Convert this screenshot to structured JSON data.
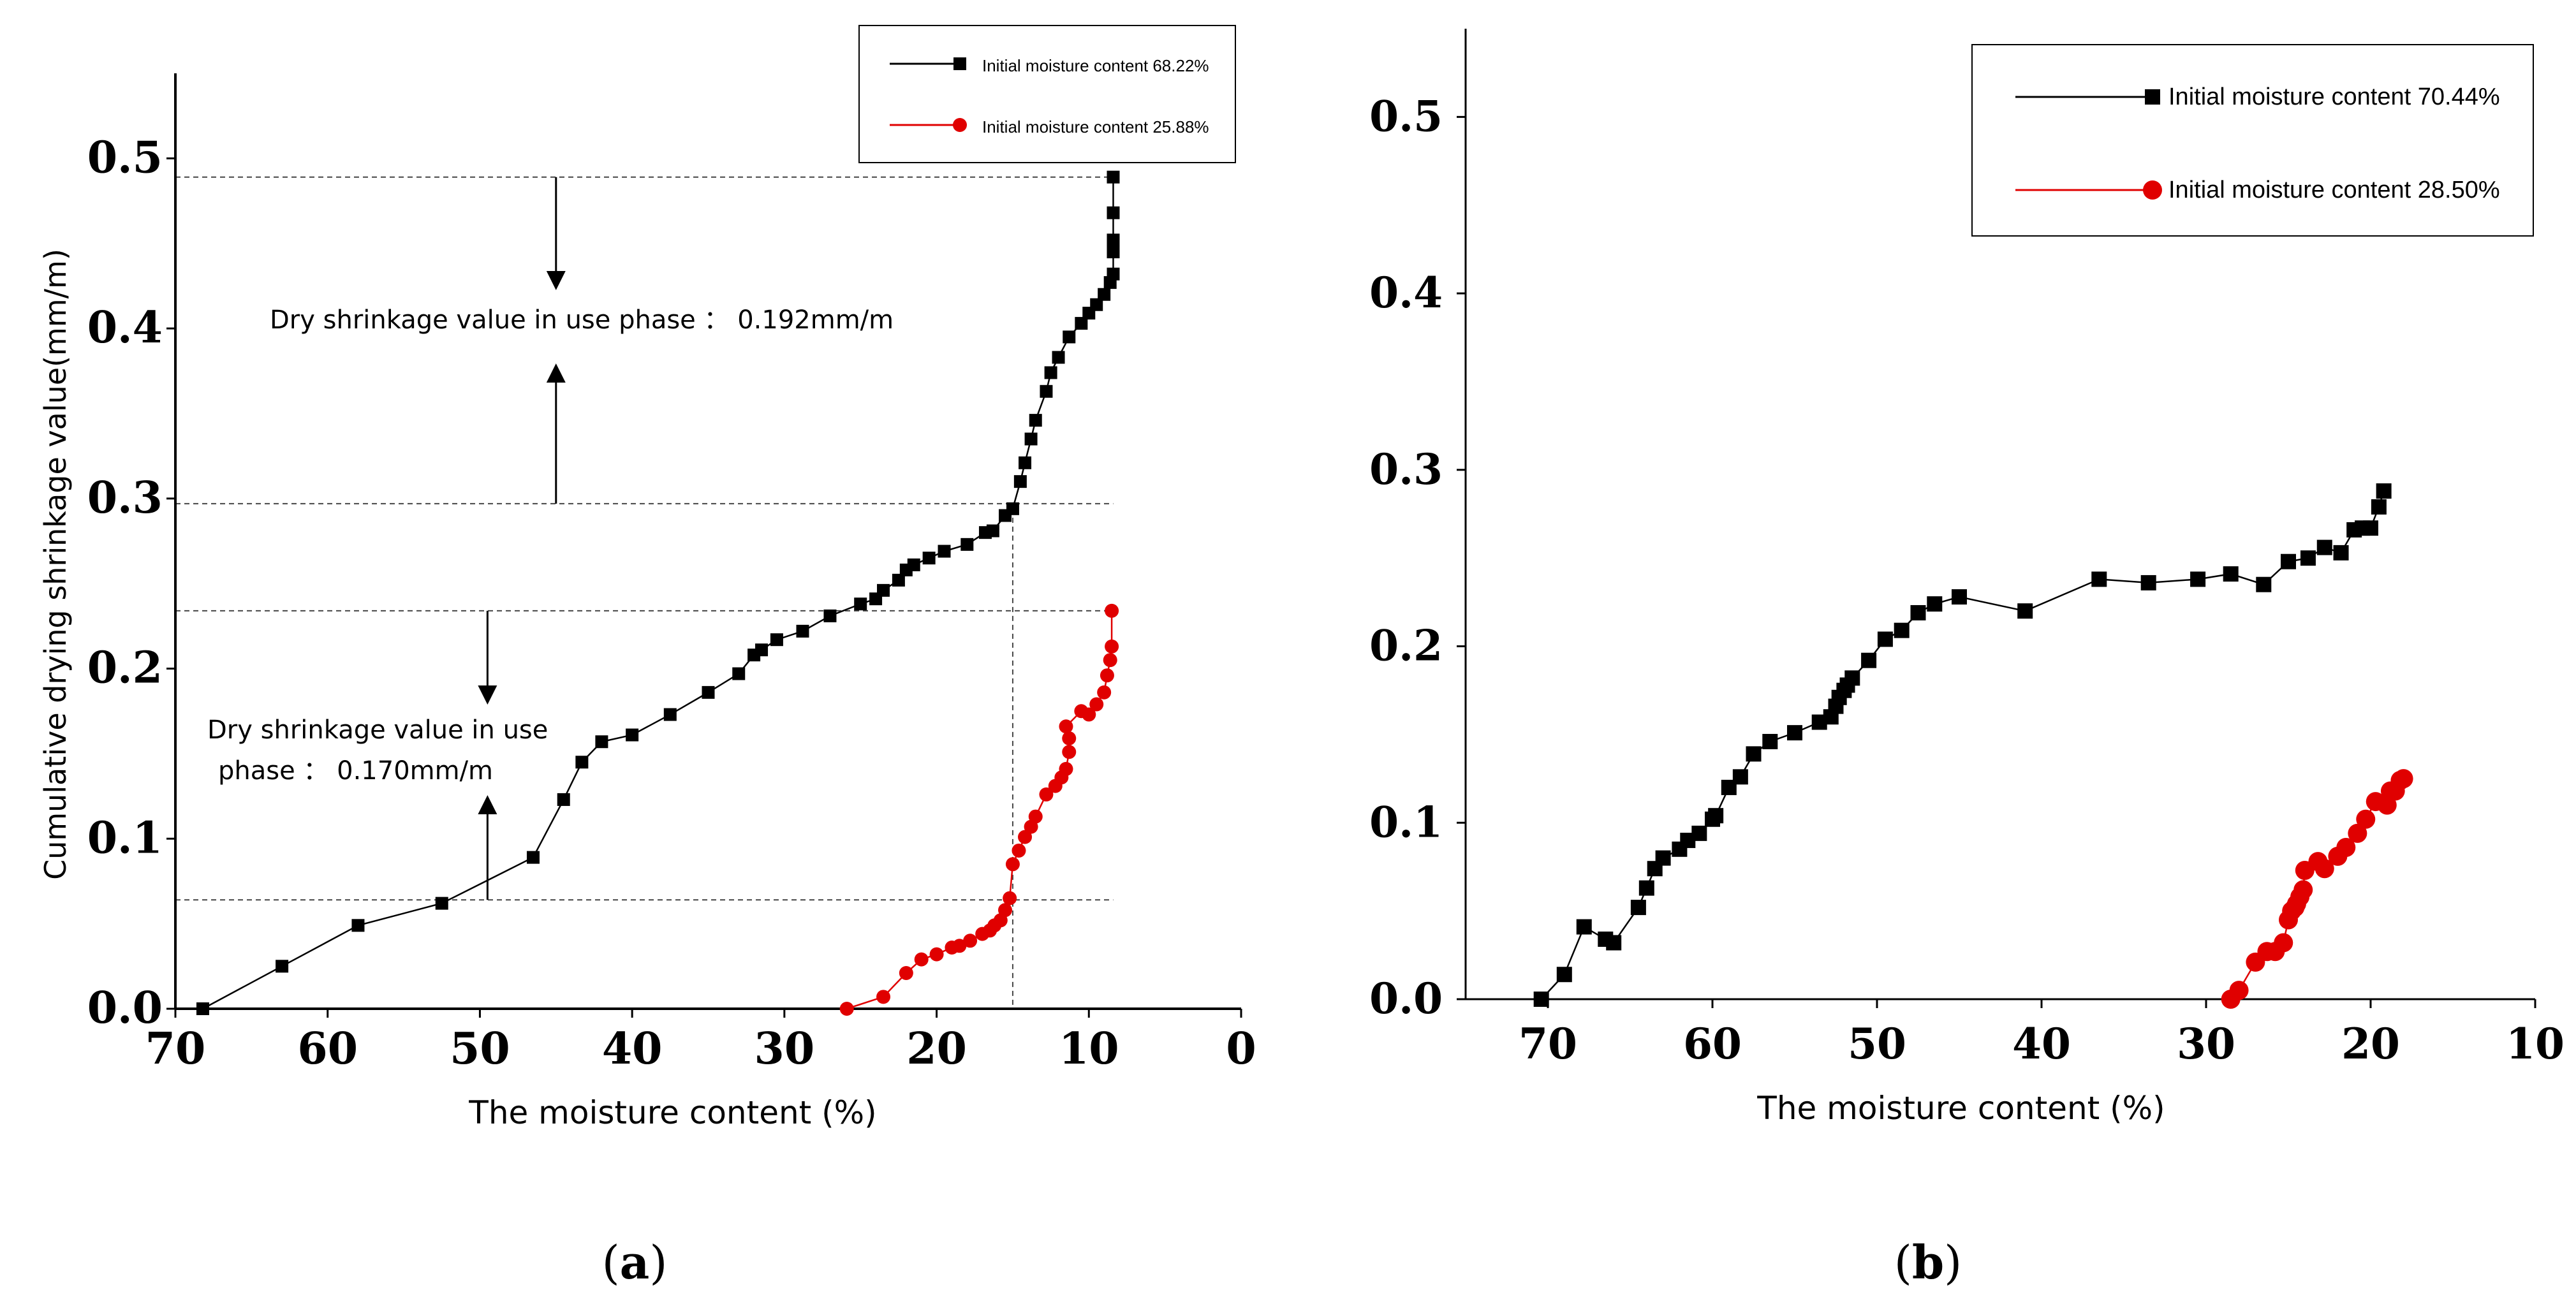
{
  "chart_data": [
    {
      "type": "line",
      "panel_label": "a",
      "title": "",
      "xlabel": "The moisture content (%)",
      "ylabel": "Cumulative drying shrinkage value(mm/m)",
      "xlim": [
        70,
        0
      ],
      "ylim": [
        0,
        0.55
      ],
      "xticks": [
        70,
        60,
        50,
        40,
        30,
        20,
        10,
        0
      ],
      "yticks": [
        0.0,
        0.1,
        0.2,
        0.3,
        0.4,
        0.5
      ],
      "xtick_labels": [
        "70",
        "60",
        "50",
        "40",
        "30",
        "20",
        "10",
        "0"
      ],
      "ytick_labels": [
        "0.0",
        "0.1",
        "0.2",
        "0.3",
        "0.4",
        "0.5"
      ],
      "legend_position": "top-right",
      "series": [
        {
          "name": "Initial moisture content 68.22%",
          "color": "#000000",
          "marker": "square",
          "x": [
            68.2,
            63.0,
            58.0,
            52.5,
            46.5,
            44.5,
            43.3,
            42.0,
            40.0,
            37.5,
            35.0,
            33.0,
            32.0,
            31.5,
            30.5,
            28.8,
            27.0,
            25.0,
            24.0,
            23.5,
            22.5,
            22.0,
            21.5,
            20.5,
            19.5,
            18.0,
            16.8,
            16.3,
            15.5,
            15.0,
            14.5,
            14.2,
            13.8,
            13.5,
            12.8,
            12.5,
            12.0,
            11.3,
            10.5,
            10.0,
            9.5,
            9.0,
            8.6,
            8.4,
            8.4,
            8.4,
            8.4,
            8.4
          ],
          "y": [
            0.0,
            0.025,
            0.049,
            0.062,
            0.089,
            0.123,
            0.145,
            0.157,
            0.161,
            0.173,
            0.186,
            0.197,
            0.208,
            0.211,
            0.217,
            0.222,
            0.231,
            0.238,
            0.241,
            0.246,
            0.252,
            0.258,
            0.261,
            0.265,
            0.269,
            0.273,
            0.28,
            0.281,
            0.29,
            0.294,
            0.31,
            0.321,
            0.335,
            0.346,
            0.363,
            0.374,
            0.383,
            0.395,
            0.403,
            0.409,
            0.414,
            0.42,
            0.427,
            0.432,
            0.445,
            0.452,
            0.468,
            0.489
          ]
        },
        {
          "name": "Initial moisture content 25.88%",
          "color": "#e00000",
          "marker": "circle",
          "x": [
            25.9,
            23.5,
            22.0,
            21.0,
            20.0,
            19.0,
            18.5,
            17.8,
            17.0,
            16.5,
            16.2,
            15.8,
            15.5,
            15.2,
            15.0,
            14.6,
            14.2,
            13.8,
            13.5,
            12.8,
            12.2,
            11.8,
            11.5,
            11.3,
            11.3,
            11.5,
            10.5,
            10.0,
            9.5,
            9.0,
            8.8,
            8.6,
            8.5,
            8.5
          ],
          "y": [
            0.0,
            0.007,
            0.021,
            0.029,
            0.032,
            0.036,
            0.037,
            0.04,
            0.044,
            0.046,
            0.049,
            0.052,
            0.058,
            0.065,
            0.085,
            0.093,
            0.101,
            0.107,
            0.113,
            0.126,
            0.131,
            0.136,
            0.141,
            0.151,
            0.159,
            0.166,
            0.175,
            0.173,
            0.179,
            0.186,
            0.196,
            0.205,
            0.213,
            0.234
          ]
        }
      ],
      "annotations": [
        {
          "text": "Dry shrinkage value in use phase ： 0.192mm/m",
          "top": 0.489,
          "bottom": 0.297,
          "x": 45
        },
        {
          "text_lines": [
            "Dry shrinkage value in use",
            "phase ： 0.170mm/m"
          ],
          "top": 0.234,
          "bottom": 0.064,
          "x": 49.5
        }
      ],
      "reference_lines": {
        "horizontal": [
          0.489,
          0.297,
          0.234,
          0.064
        ],
        "vertical": [
          15.0
        ]
      }
    },
    {
      "type": "line",
      "panel_label": "b",
      "title": "",
      "xlabel": "The moisture content (%)",
      "ylabel": "",
      "xlim": [
        75,
        10
      ],
      "ylim": [
        0,
        0.55
      ],
      "xticks": [
        70,
        60,
        50,
        40,
        30,
        20,
        10
      ],
      "yticks": [
        0.0,
        0.1,
        0.2,
        0.3,
        0.4,
        0.5
      ],
      "xtick_labels": [
        "70",
        "60",
        "50",
        "40",
        "30",
        "20",
        "10"
      ],
      "ytick_labels": [
        "0.0",
        "0.1",
        "0.2",
        "0.3",
        "0.4",
        "0.5"
      ],
      "legend_position": "top-right",
      "series": [
        {
          "name": "Initial moisture content 70.44%",
          "color": "#000000",
          "marker": "square",
          "x": [
            70.4,
            69.0,
            67.8,
            66.5,
            66.0,
            64.5,
            64.0,
            63.5,
            63.0,
            62.0,
            61.5,
            60.8,
            60.0,
            59.8,
            59.0,
            58.3,
            57.5,
            56.5,
            55.0,
            53.5,
            52.8,
            52.5,
            52.3,
            52.0,
            51.8,
            51.5,
            50.5,
            49.5,
            48.5,
            47.5,
            46.5,
            45.0,
            41.0,
            36.5,
            33.5,
            30.5,
            28.5,
            26.5,
            25.0,
            23.8,
            22.8,
            21.8,
            21.0,
            20.5,
            20.0,
            19.5,
            19.2
          ],
          "y": [
            0.0,
            0.014,
            0.041,
            0.034,
            0.032,
            0.052,
            0.063,
            0.074,
            0.08,
            0.085,
            0.09,
            0.094,
            0.102,
            0.104,
            0.12,
            0.126,
            0.139,
            0.146,
            0.151,
            0.157,
            0.16,
            0.166,
            0.171,
            0.175,
            0.178,
            0.182,
            0.192,
            0.204,
            0.209,
            0.219,
            0.224,
            0.228,
            0.22,
            0.238,
            0.236,
            0.238,
            0.241,
            0.235,
            0.248,
            0.25,
            0.256,
            0.253,
            0.266,
            0.267,
            0.267,
            0.279,
            0.288
          ]
        },
        {
          "name": "Initial moisture content 28.50%",
          "color": "#e00000",
          "marker": "circle",
          "x": [
            28.5,
            28.0,
            27.0,
            26.3,
            25.8,
            25.3,
            25.0,
            24.8,
            24.6,
            24.5,
            24.3,
            24.1,
            24.0,
            23.2,
            22.8,
            22.0,
            21.5,
            20.8,
            20.3,
            19.7,
            19.0,
            18.8,
            18.5,
            18.2,
            18.0
          ],
          "y": [
            0.0,
            0.005,
            0.021,
            0.027,
            0.027,
            0.032,
            0.045,
            0.05,
            0.052,
            0.054,
            0.058,
            0.062,
            0.073,
            0.078,
            0.074,
            0.081,
            0.086,
            0.094,
            0.102,
            0.112,
            0.11,
            0.118,
            0.118,
            0.124,
            0.125
          ]
        }
      ],
      "annotations": [],
      "reference_lines": {
        "horizontal": [],
        "vertical": []
      }
    }
  ]
}
